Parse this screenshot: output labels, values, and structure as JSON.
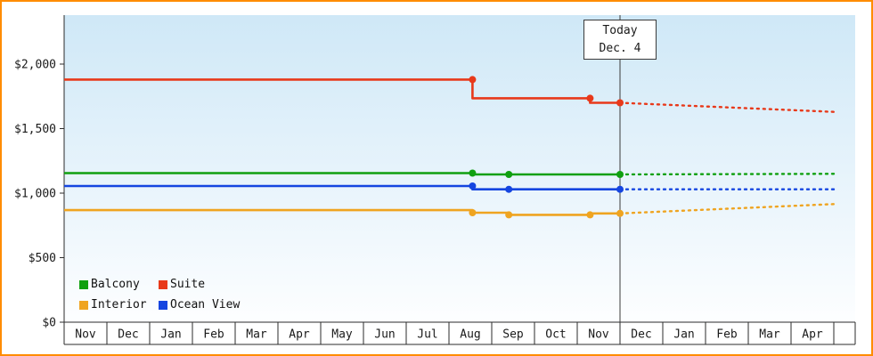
{
  "window": {
    "border_color": "#ff8c00",
    "plot_bg_top": "#cfe8f7",
    "plot_bg_bottom": "#fdfeff"
  },
  "chart_data": {
    "type": "line",
    "title": "",
    "xlabel": "",
    "ylabel": "",
    "grid": false,
    "months": [
      "Nov",
      "Dec",
      "Jan",
      "Feb",
      "Mar",
      "Apr",
      "May",
      "Jun",
      "Jul",
      "Aug",
      "Sep",
      "Oct",
      "Nov",
      "Dec",
      "Jan",
      "Feb",
      "Mar",
      "Apr"
    ],
    "y_ticks": [
      {
        "value": 0,
        "label": "$0"
      },
      {
        "value": 500,
        "label": "$500"
      },
      {
        "value": 1000,
        "label": "$1,000"
      },
      {
        "value": 1500,
        "label": "$1,500"
      },
      {
        "value": 2000,
        "label": "$2,000"
      }
    ],
    "ylim": [
      0,
      2380
    ],
    "today": {
      "position": 13,
      "line1": "Today",
      "line2": "Dec. 4"
    },
    "series": [
      {
        "name": "Suite",
        "color": "#e8391a",
        "solid": [
          [
            0,
            1880
          ],
          [
            9.55,
            1880
          ],
          [
            9.55,
            1735
          ],
          [
            12.3,
            1735
          ],
          [
            12.3,
            1700
          ],
          [
            13,
            1700
          ]
        ],
        "markers": [
          [
            9.55,
            1880
          ],
          [
            12.3,
            1735
          ],
          [
            13,
            1700
          ]
        ],
        "dashed": [
          [
            13,
            1700
          ],
          [
            18,
            1630
          ]
        ]
      },
      {
        "name": "Balcony",
        "color": "#10a010",
        "solid": [
          [
            0,
            1155
          ],
          [
            9.55,
            1155
          ],
          [
            9.55,
            1145
          ],
          [
            13,
            1145
          ]
        ],
        "markers": [
          [
            9.55,
            1155
          ],
          [
            10.4,
            1145
          ],
          [
            13,
            1145
          ]
        ],
        "dashed": [
          [
            13,
            1145
          ],
          [
            18,
            1150
          ]
        ]
      },
      {
        "name": "Ocean View",
        "color": "#1545e0",
        "solid": [
          [
            0,
            1055
          ],
          [
            9.55,
            1055
          ],
          [
            9.55,
            1030
          ],
          [
            13,
            1030
          ]
        ],
        "markers": [
          [
            9.55,
            1055
          ],
          [
            10.4,
            1030
          ],
          [
            13,
            1030
          ]
        ],
        "dashed": [
          [
            13,
            1030
          ],
          [
            18,
            1030
          ]
        ]
      },
      {
        "name": "Interior",
        "color": "#efa420",
        "solid": [
          [
            0,
            868
          ],
          [
            9.55,
            868
          ],
          [
            9.55,
            848
          ],
          [
            10.4,
            848
          ],
          [
            10.4,
            832
          ],
          [
            12.3,
            832
          ],
          [
            12.3,
            843
          ],
          [
            13,
            843
          ]
        ],
        "markers": [
          [
            9.55,
            848
          ],
          [
            10.4,
            832
          ],
          [
            12.3,
            832
          ],
          [
            13,
            843
          ]
        ],
        "dashed": [
          [
            13,
            843
          ],
          [
            18,
            915
          ]
        ]
      }
    ],
    "legend": [
      {
        "label": "Balcony",
        "color": "#10a010"
      },
      {
        "label": "Suite",
        "color": "#e8391a"
      },
      {
        "label": "Interior",
        "color": "#efa420"
      },
      {
        "label": "Ocean View",
        "color": "#1545e0"
      }
    ],
    "legend_position": "bottom-left"
  }
}
